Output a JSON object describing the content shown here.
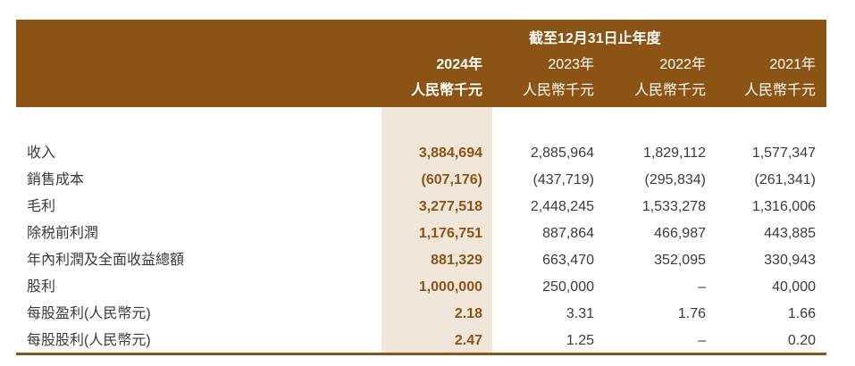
{
  "header": {
    "period": "截至12月31日止年度",
    "columns": [
      {
        "year": "2024年",
        "unit": "人民幣千元"
      },
      {
        "year": "2023年",
        "unit": "人民幣千元"
      },
      {
        "year": "2022年",
        "unit": "人民幣千元"
      },
      {
        "year": "2021年",
        "unit": "人民幣千元"
      }
    ]
  },
  "rows": [
    {
      "label": "收入",
      "values": [
        "3,884,694",
        "2,885,964",
        "1,829,112",
        "1,577,347"
      ]
    },
    {
      "label": "銷售成本",
      "values": [
        "(607,176)",
        "(437,719)",
        "(295,834)",
        "(261,341)"
      ]
    },
    {
      "label": "毛利",
      "values": [
        "3,277,518",
        "2,448,245",
        "1,533,278",
        "1,316,006"
      ]
    },
    {
      "label": "除税前利潤",
      "values": [
        "1,176,751",
        "887,864",
        "466,987",
        "443,885"
      ]
    },
    {
      "label": "年內利潤及全面收益總額",
      "values": [
        "881,329",
        "663,470",
        "352,095",
        "330,943"
      ]
    },
    {
      "label": "股利",
      "values": [
        "1,000,000",
        "250,000",
        "–",
        "40,000"
      ]
    },
    {
      "label": "每股盈利(人民幣元)",
      "values": [
        "2.18",
        "3.31",
        "1.76",
        "1.66"
      ]
    },
    {
      "label": "每股股利(人民幣元)",
      "values": [
        "2.47",
        "1.25",
        "–",
        "0.20"
      ]
    }
  ],
  "colors": {
    "header_bg": "#8B5414",
    "highlight_bg": "#F1E6DA",
    "current_year_text": "#8B5414"
  }
}
